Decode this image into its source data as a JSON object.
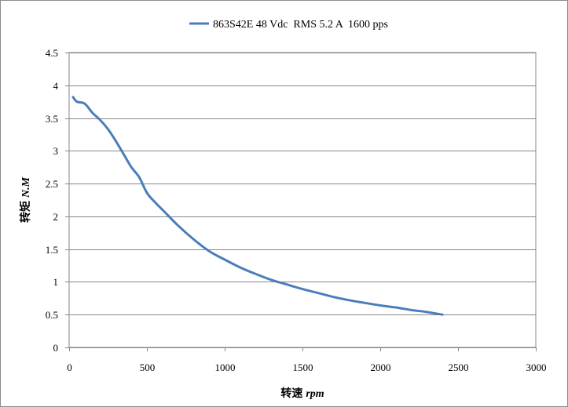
{
  "chart_data": {
    "type": "line",
    "title": "",
    "xlabel": "转速",
    "xlabel_unit": "rpm",
    "ylabel": "转矩",
    "ylabel_unit": "N.M",
    "xlim": [
      0,
      3000
    ],
    "ylim": [
      0,
      4.5
    ],
    "x_ticks": [
      0,
      500,
      1000,
      1500,
      2000,
      2500,
      3000
    ],
    "y_ticks": [
      0,
      0.5,
      1,
      1.5,
      2,
      2.5,
      3,
      3.5,
      4,
      4.5
    ],
    "grid": "horizontal",
    "legend_position": "top-center",
    "series": [
      {
        "name": "863S42E 48 Vdc  RMS 5.2 A  1600 pps",
        "color": "#4a7ebb",
        "x": [
          25,
          50,
          100,
          150,
          200,
          250,
          300,
          350,
          400,
          450,
          500,
          550,
          600,
          700,
          800,
          900,
          1000,
          1100,
          1200,
          1300,
          1400,
          1500,
          1600,
          1700,
          1800,
          1900,
          2000,
          2100,
          2200,
          2300,
          2400
        ],
        "y": [
          3.82,
          3.75,
          3.72,
          3.58,
          3.47,
          3.33,
          3.15,
          2.95,
          2.75,
          2.6,
          2.36,
          2.22,
          2.1,
          1.86,
          1.65,
          1.47,
          1.34,
          1.22,
          1.12,
          1.03,
          0.96,
          0.89,
          0.83,
          0.77,
          0.72,
          0.68,
          0.64,
          0.61,
          0.57,
          0.54,
          0.5
        ]
      }
    ]
  }
}
